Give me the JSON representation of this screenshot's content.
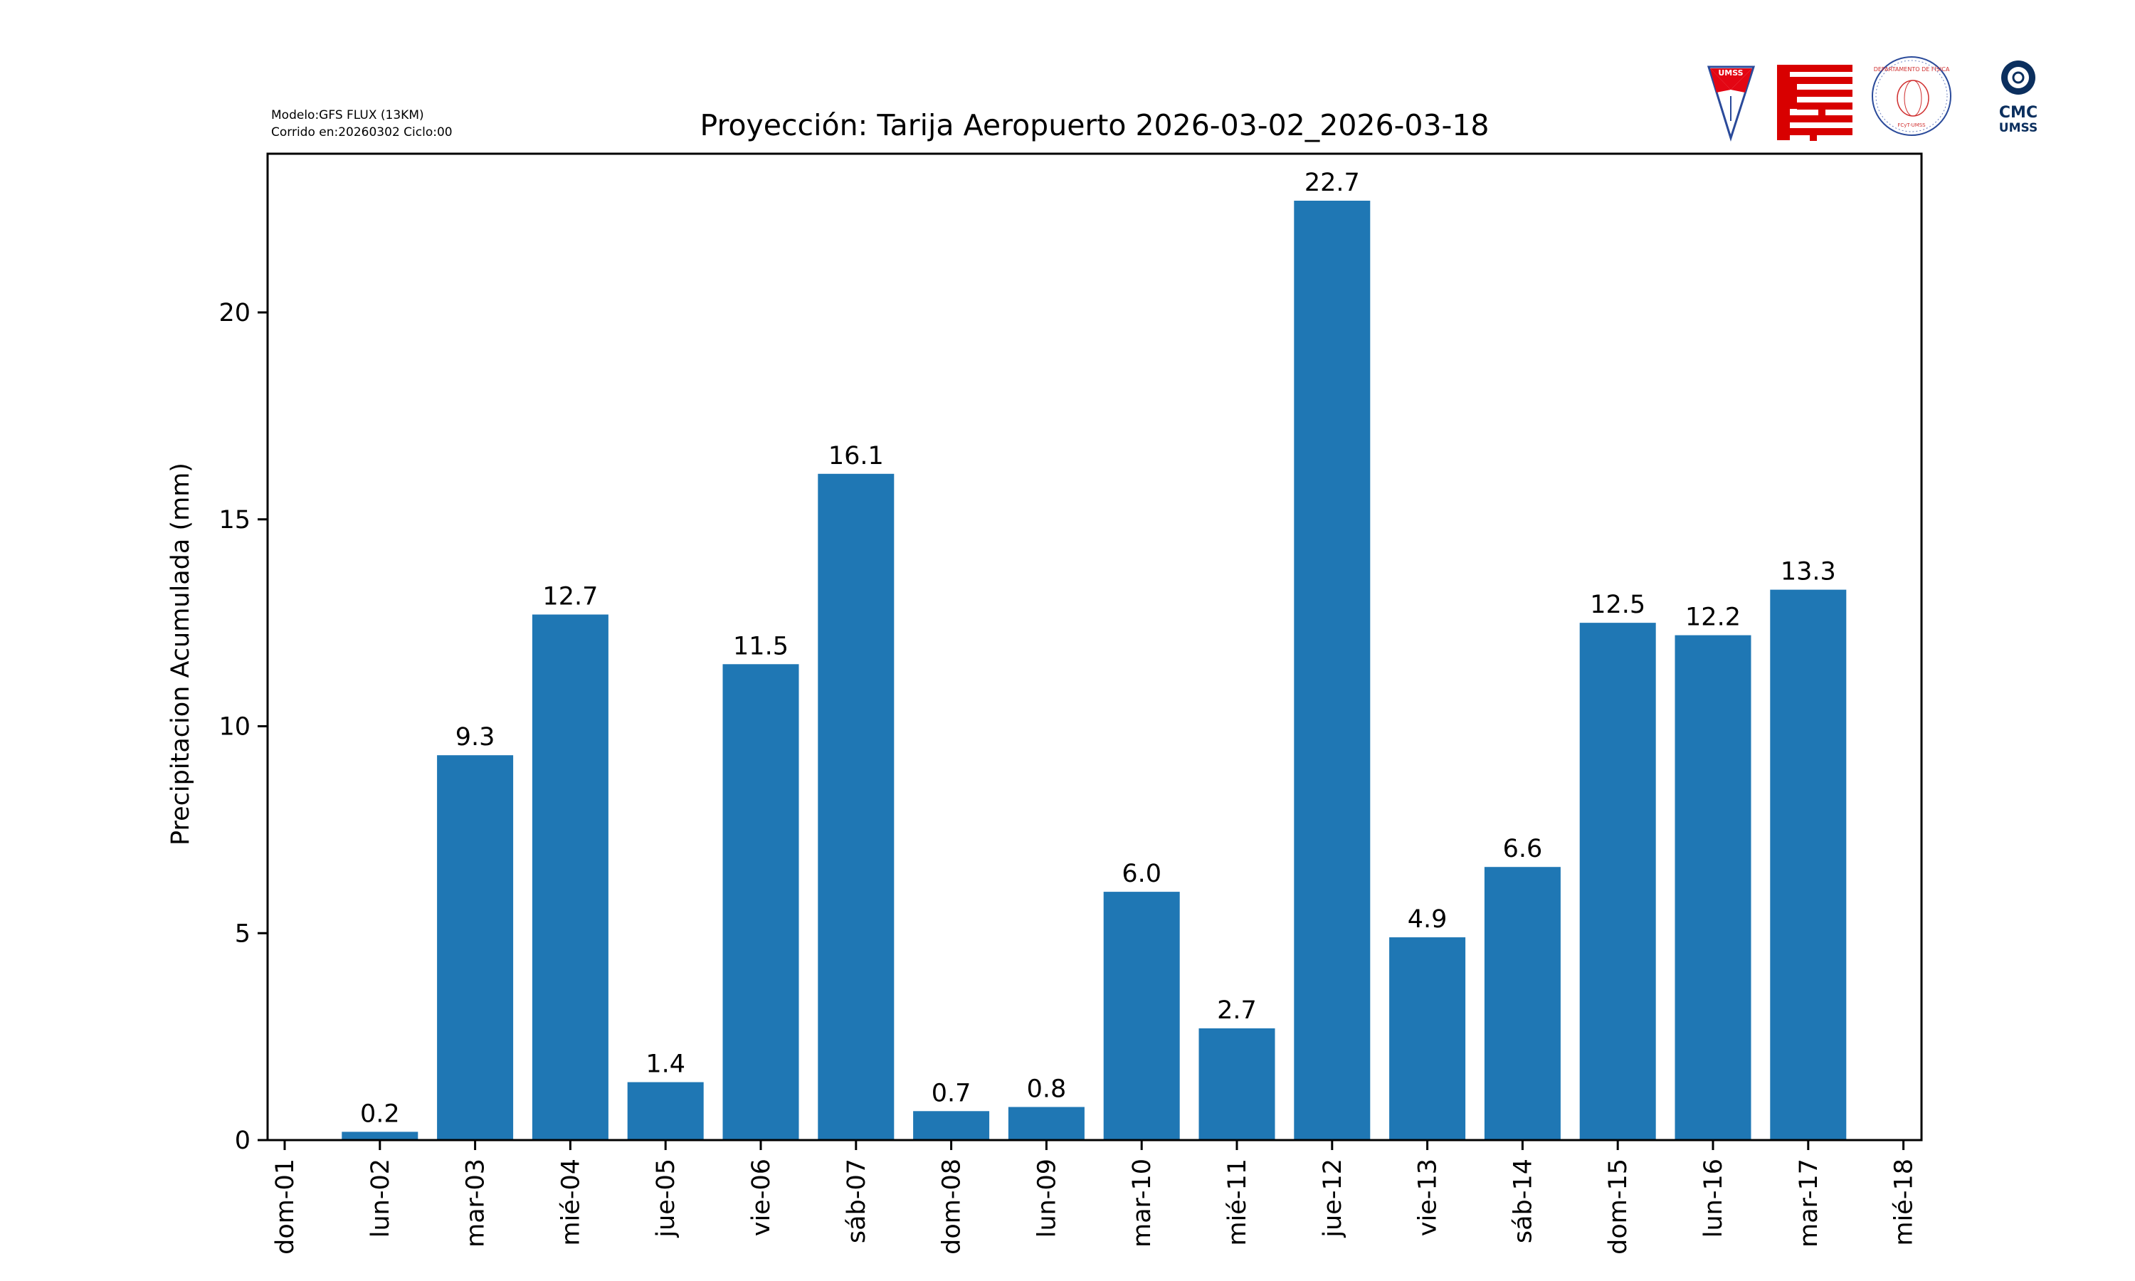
{
  "header": {
    "model_line": "Modelo:GFS FLUX (13KM)",
    "run_line": "Corrido en:20260302 Ciclo:00"
  },
  "logos": {
    "umss": "UMSS",
    "fisica": "DEPARTAMENTO DE FÍSICA",
    "fisica_sub": "FCyT-UMSS",
    "cmc_line1": "CMC",
    "cmc_line2": "UMSS"
  },
  "colors": {
    "bar": "#1f77b4",
    "umss_red": "#e30613",
    "navy": "#0b2f5e"
  },
  "chart_data": {
    "type": "bar",
    "title": "Proyección: Tarija Aeropuerto  2026-03-02_2026-03-18",
    "xlabel": "",
    "ylabel": "Precipitacion Acumulada (mm)",
    "categories": [
      "dom-01",
      "lun-02",
      "mar-03",
      "mié-04",
      "jue-05",
      "vie-06",
      "sáb-07",
      "dom-08",
      "lun-09",
      "mar-10",
      "mié-11",
      "jue-12",
      "vie-13",
      "sáb-14",
      "dom-15",
      "lun-16",
      "mar-17",
      "mié-18"
    ],
    "values": [
      null,
      0.2,
      9.3,
      12.7,
      1.4,
      11.5,
      16.1,
      0.7,
      0.8,
      6.0,
      2.7,
      22.7,
      4.9,
      6.6,
      12.5,
      12.2,
      13.3,
      null
    ],
    "data_labels": [
      null,
      "0.2",
      "9.3",
      "12.7",
      "1.4",
      "11.5",
      "16.1",
      "0.7",
      "0.8",
      "6.0",
      "2.7",
      "22.7",
      "4.9",
      "6.6",
      "12.5",
      "12.2",
      "13.3",
      null
    ],
    "yticks": [
      0,
      5,
      10,
      15,
      20
    ],
    "ytick_labels": [
      "0",
      "5",
      "10",
      "15",
      "20"
    ],
    "ylim": [
      0,
      23.835
    ],
    "grid": false,
    "legend": "none"
  }
}
